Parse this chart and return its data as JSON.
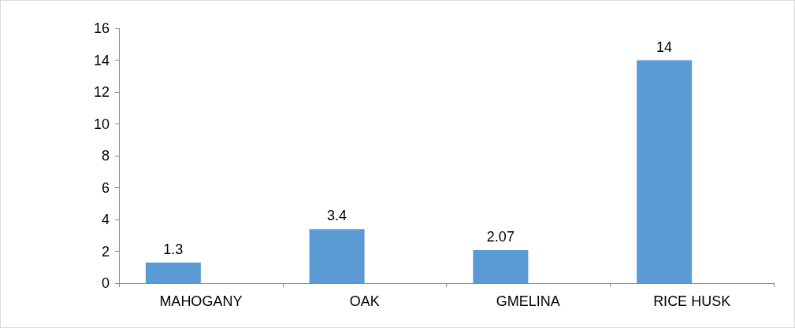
{
  "chart_data": {
    "type": "bar",
    "categories": [
      "MAHOGANY",
      "OAK",
      "GMELINA",
      "RICE HUSK"
    ],
    "values": [
      1.3,
      3.4,
      2.07,
      14
    ],
    "color": "#5b9bd5",
    "ylim": [
      0,
      16
    ],
    "yticks": [
      0,
      2,
      4,
      6,
      8,
      10,
      12,
      14,
      16
    ],
    "data_labels": true
  }
}
